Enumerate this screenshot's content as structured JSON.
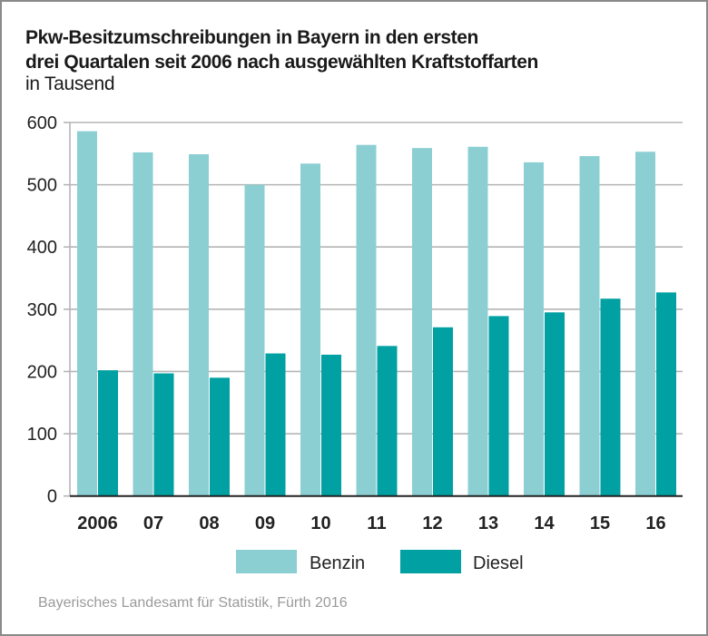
{
  "header": {
    "title_line1": "Pkw-Besitzumschreibungen in Bayern in den ersten",
    "title_line2": "drei Quartalen seit 2006 nach ausgewählten Kraftstoffarten",
    "unit": "in Tausend"
  },
  "source": "Bayerisches Landesamt für Statistik, Fürth 2016",
  "colors": {
    "benzin": "#8ccfd3",
    "diesel": "#00a0a3",
    "grid": "#b5b5b5",
    "axis": "#222222"
  },
  "chart_data": {
    "type": "bar",
    "title": "Pkw-Besitzumschreibungen in Bayern in den ersten drei Quartalen seit 2006 nach ausgewählten Kraftstoffarten",
    "subtitle": "in Tausend",
    "xlabel": "",
    "ylabel": "",
    "categories": [
      "2006",
      "07",
      "08",
      "09",
      "10",
      "11",
      "12",
      "13",
      "14",
      "15",
      "16"
    ],
    "series": [
      {
        "name": "Benzin",
        "values": [
          586,
          552,
          549,
          500,
          534,
          564,
          559,
          561,
          536,
          546,
          553
        ]
      },
      {
        "name": "Diesel",
        "values": [
          202,
          197,
          190,
          229,
          227,
          241,
          271,
          289,
          295,
          317,
          327
        ]
      }
    ],
    "ylim": [
      0,
      600
    ],
    "yticks": [
      0,
      100,
      200,
      300,
      400,
      500,
      600
    ],
    "grid": true,
    "legend": "bottom-center"
  }
}
